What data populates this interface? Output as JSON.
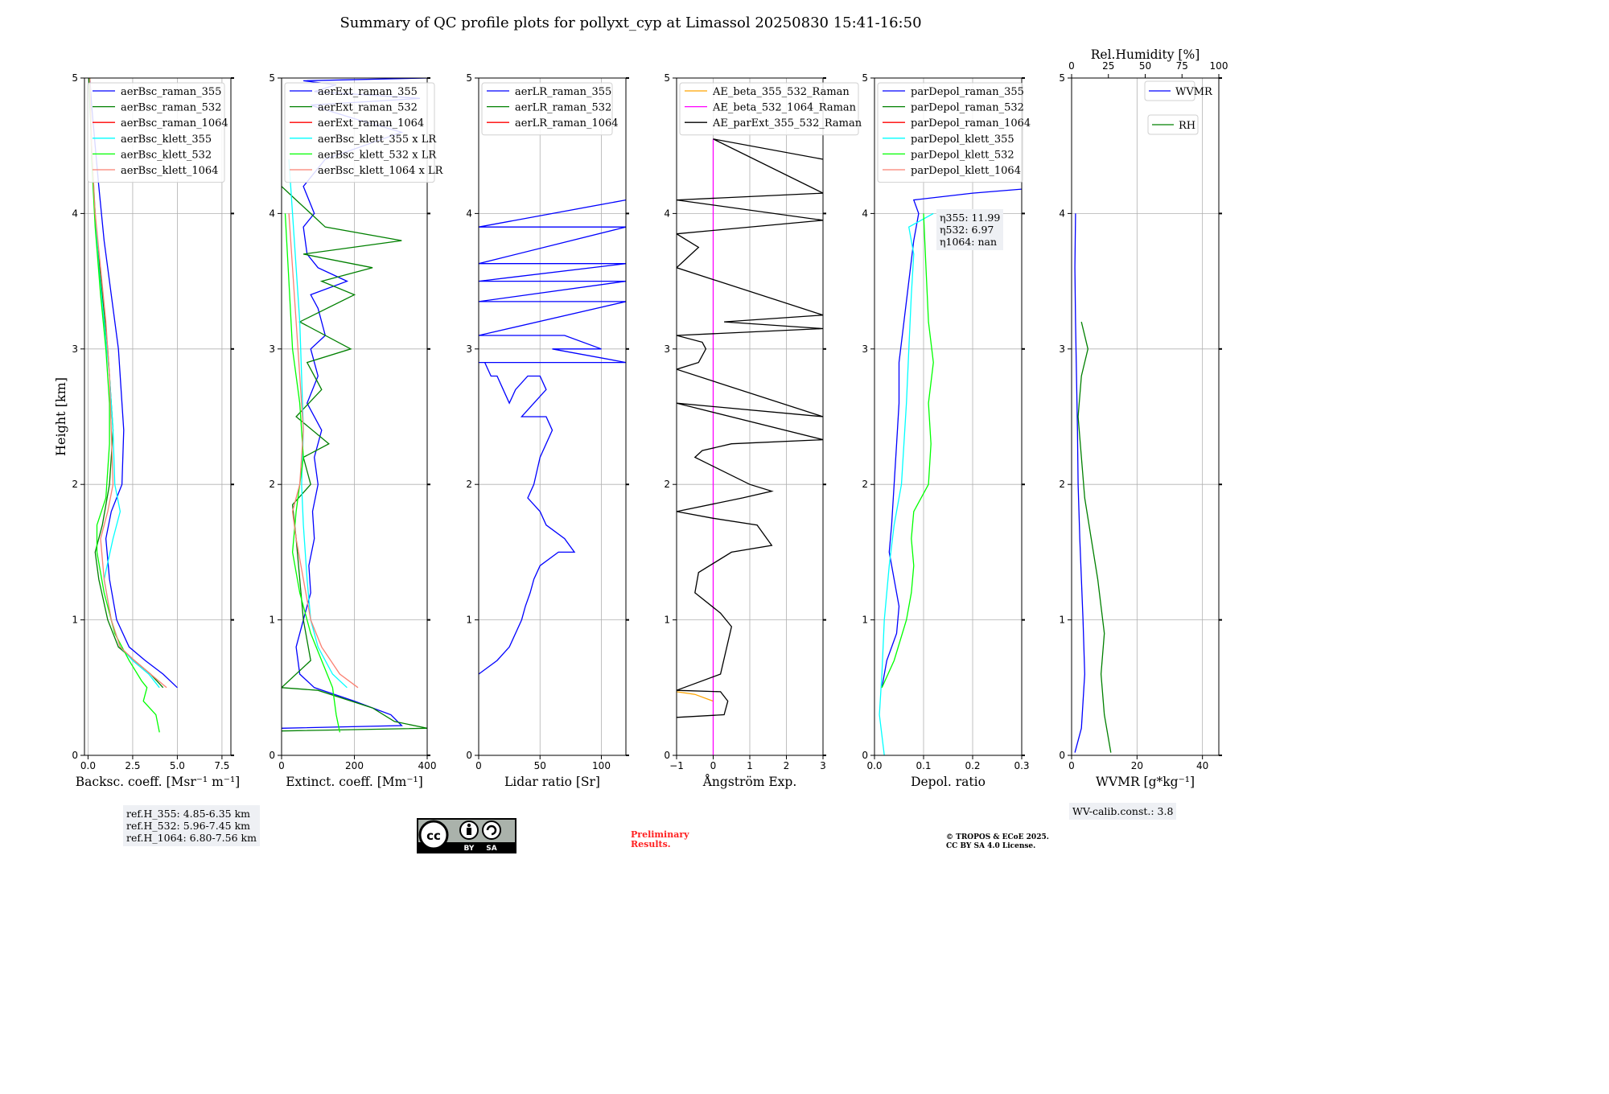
{
  "title": "Summary of QC profile plots for pollyxt_cyp at Limassol 20250830 15:41-16:50",
  "ylabel": "Height [km]",
  "ref_heights": [
    "ref.H_355: 4.85-6.35 km",
    "ref.H_532: 5.96-7.45 km",
    "ref.H_1064: 6.80-7.56 km"
  ],
  "eta": [
    "η355: 11.99",
    "η532: 6.97",
    "η1064: nan"
  ],
  "wv_calib": "WV-calib.const.: 3.8",
  "preliminary": [
    "Preliminary",
    "Results."
  ],
  "copyright": [
    "© TROPOS & ECoE 2025.",
    "CC BY SA 4.0 License."
  ],
  "license_badge": [
    "BY",
    "SA"
  ],
  "colors": {
    "blue": "#0000ff",
    "green": "#008000",
    "red": "#ff0000",
    "cyan": "#00ffff",
    "lime": "#00ff00",
    "salmon": "#fa8072",
    "orange": "#ffa500",
    "magenta": "#ff00ff",
    "black": "#000000"
  },
  "chart_data": [
    {
      "type": "line",
      "xlabel": "Backsc. coeff. [Msr⁻¹ m⁻¹]",
      "xlim": [
        -0.2,
        8
      ],
      "xticks": [
        0.0,
        2.5,
        5.0,
        7.5
      ],
      "xticklabels": [
        "0.0",
        "2.5",
        "5.0",
        "7.5"
      ],
      "ylim": [
        0,
        5
      ],
      "yticks": [
        0,
        1,
        2,
        3,
        4,
        5
      ],
      "grid": true,
      "legend": "top",
      "series": [
        {
          "name": "aerBsc_raman_355",
          "color": "blue",
          "x": [
            5.0,
            4.2,
            3.2,
            2.3,
            1.6,
            1.2,
            1.0,
            1.3,
            1.9,
            2.0,
            1.9,
            1.7,
            1.3,
            0.9,
            0.6,
            0.4,
            0.2,
            0.1
          ],
          "y": [
            0.5,
            0.6,
            0.7,
            0.8,
            1.0,
            1.3,
            1.6,
            1.8,
            2.0,
            2.4,
            2.6,
            3.0,
            3.4,
            3.8,
            4.2,
            4.5,
            4.8,
            5.0
          ]
        },
        {
          "name": "aerBsc_raman_532",
          "color": "green",
          "x": [
            4.2,
            3.5,
            2.6,
            1.7,
            1.1,
            0.6,
            0.4,
            0.8,
            1.2,
            1.4,
            1.3,
            1.1,
            0.8,
            0.5,
            0.3,
            0.2,
            0.1,
            0.05
          ],
          "y": [
            0.5,
            0.6,
            0.7,
            0.8,
            1.0,
            1.3,
            1.5,
            1.7,
            2.0,
            2.4,
            2.6,
            3.0,
            3.4,
            3.8,
            4.2,
            4.5,
            4.8,
            5.0
          ]
        },
        {
          "name": "aerBsc_raman_1064",
          "color": "red",
          "x": [],
          "y": []
        },
        {
          "name": "aerBsc_klett_355",
          "color": "cyan",
          "x": [
            4.0,
            3.4,
            2.5,
            1.8,
            1.3,
            0.9,
            1.4,
            1.8,
            1.5,
            1.4,
            1.2,
            0.9,
            0.6,
            0.4,
            0.2,
            0.1
          ],
          "y": [
            0.5,
            0.6,
            0.7,
            0.8,
            1.0,
            1.3,
            1.6,
            1.8,
            2.0,
            2.4,
            2.8,
            3.2,
            3.6,
            4.0,
            4.5,
            5.0
          ]
        },
        {
          "name": "aerBsc_klett_532",
          "color": "lime",
          "x": [
            4.0,
            3.8,
            3.1,
            3.3,
            3.0,
            2.3,
            1.5,
            0.9,
            0.5,
            0.5,
            1.0,
            1.2,
            1.2,
            1.0,
            0.7,
            0.4,
            0.2,
            0.1
          ],
          "y": [
            0.17,
            0.3,
            0.4,
            0.5,
            0.55,
            0.7,
            0.9,
            1.2,
            1.5,
            1.7,
            1.9,
            2.3,
            2.6,
            3.0,
            3.4,
            3.9,
            4.4,
            5.0
          ]
        },
        {
          "name": "aerBsc_klett_1064",
          "color": "salmon",
          "x": [
            4.4,
            3.5,
            2.6,
            1.8,
            1.3,
            0.9,
            0.7,
            1.1,
            1.4,
            1.3,
            1.2,
            1.0,
            0.7,
            0.4,
            0.2,
            0.1
          ],
          "y": [
            0.5,
            0.6,
            0.7,
            0.8,
            1.0,
            1.3,
            1.6,
            1.8,
            2.0,
            2.4,
            2.8,
            3.2,
            3.6,
            4.0,
            4.5,
            5.0
          ]
        }
      ]
    },
    {
      "type": "line",
      "xlabel": "Extinct. coeff. [Mm⁻¹]",
      "xlim": [
        0,
        400
      ],
      "xticks": [
        0,
        200,
        400
      ],
      "xticklabels": [
        "0",
        "200",
        "400"
      ],
      "ylim": [
        0,
        5
      ],
      "yticks": [
        0,
        1,
        2,
        3,
        4,
        5
      ],
      "grid": true,
      "legend": "top",
      "series": [
        {
          "name": "aerExt_raman_355",
          "color": "blue",
          "x": [
            0,
            330,
            300,
            200,
            90,
            50,
            40,
            60,
            80,
            75,
            90,
            85,
            100,
            90,
            110,
            70,
            100,
            80,
            120,
            100,
            80,
            180,
            100,
            70,
            60,
            90,
            60,
            120,
            330,
            200,
            80,
            380,
            90,
            150,
            60,
            400
          ],
          "y": [
            0.2,
            0.22,
            0.3,
            0.4,
            0.5,
            0.6,
            0.8,
            1.0,
            1.2,
            1.4,
            1.6,
            1.8,
            2.0,
            2.2,
            2.4,
            2.6,
            2.8,
            3.0,
            3.1,
            3.3,
            3.4,
            3.5,
            3.6,
            3.7,
            3.9,
            4.0,
            4.2,
            4.4,
            4.6,
            4.7,
            4.8,
            4.85,
            4.9,
            4.95,
            4.98,
            5.0
          ]
        },
        {
          "name": "aerExt_raman_532",
          "color": "green",
          "x": [
            0,
            400,
            310,
            250,
            100,
            0,
            80,
            60,
            50,
            40,
            30,
            80,
            60,
            130,
            40,
            110,
            70,
            190,
            50,
            200,
            110,
            250,
            60,
            330,
            120,
            40,
            0
          ],
          "y": [
            0.18,
            0.2,
            0.25,
            0.35,
            0.48,
            0.5,
            0.7,
            1.0,
            1.3,
            1.6,
            1.85,
            2.0,
            2.2,
            2.3,
            2.5,
            2.7,
            2.9,
            3.0,
            3.2,
            3.4,
            3.5,
            3.6,
            3.7,
            3.8,
            3.9,
            4.1,
            4.2
          ]
        },
        {
          "name": "aerExt_raman_1064",
          "color": "red",
          "x": [],
          "y": []
        },
        {
          "name": "aerBsc_klett_355 x LR",
          "color": "cyan",
          "x": [
            180,
            140,
            100,
            80,
            70,
            60,
            55,
            60,
            55,
            50,
            40,
            30,
            20
          ],
          "y": [
            0.5,
            0.6,
            0.8,
            1.0,
            1.3,
            1.7,
            2.0,
            2.4,
            2.8,
            3.2,
            3.6,
            4.0,
            4.4
          ]
        },
        {
          "name": "aerBsc_klett_532 x LR",
          "color": "lime",
          "x": [
            160,
            150,
            140,
            110,
            80,
            50,
            30,
            40,
            60,
            50,
            30,
            20,
            10
          ],
          "y": [
            0.17,
            0.3,
            0.5,
            0.7,
            0.9,
            1.2,
            1.5,
            1.8,
            2.2,
            2.6,
            3.0,
            3.5,
            4.0
          ]
        },
        {
          "name": "aerBsc_klett_1064 x LR",
          "color": "salmon",
          "x": [
            210,
            160,
            110,
            80,
            60,
            40,
            30,
            50,
            60,
            50,
            40,
            30,
            20
          ],
          "y": [
            0.5,
            0.6,
            0.8,
            1.0,
            1.3,
            1.6,
            1.8,
            2.0,
            2.4,
            2.8,
            3.2,
            3.6,
            4.0
          ]
        }
      ]
    },
    {
      "type": "line",
      "xlabel": "Lidar ratio [Sr]",
      "xlim": [
        0,
        120
      ],
      "xticks": [
        0,
        50,
        100
      ],
      "xticklabels": [
        "0",
        "50",
        "100"
      ],
      "ylim": [
        0,
        5
      ],
      "yticks": [
        0,
        1,
        2,
        3,
        4,
        5
      ],
      "grid": true,
      "legend": "top",
      "series": [
        {
          "name": "aerLR_raman_355",
          "color": "blue",
          "x": [
            0,
            15,
            25,
            30,
            35,
            38,
            42,
            45,
            50,
            65,
            78,
            70,
            55,
            50,
            40,
            45,
            50,
            60,
            55,
            35,
            45,
            55,
            50,
            40,
            30,
            25,
            20,
            15,
            10,
            5,
            0,
            120,
            60,
            100,
            70,
            0,
            120,
            0,
            120,
            0,
            120,
            0,
            120,
            0,
            120
          ],
          "y": [
            0.6,
            0.7,
            0.8,
            0.9,
            1.0,
            1.1,
            1.2,
            1.3,
            1.4,
            1.5,
            1.5,
            1.6,
            1.7,
            1.8,
            1.9,
            2.0,
            2.2,
            2.4,
            2.5,
            2.5,
            2.6,
            2.7,
            2.8,
            2.8,
            2.7,
            2.6,
            2.7,
            2.8,
            2.8,
            2.9,
            2.9,
            2.9,
            3.0,
            3.0,
            3.1,
            3.1,
            3.35,
            3.35,
            3.5,
            3.5,
            3.63,
            3.63,
            3.9,
            3.9,
            4.1
          ]
        },
        {
          "name": "aerLR_raman_532",
          "color": "green",
          "x": [],
          "y": []
        },
        {
          "name": "aerLR_raman_1064",
          "color": "red",
          "x": [],
          "y": []
        }
      ]
    },
    {
      "type": "line",
      "xlabel": "Ångström Exp.",
      "xlim": [
        -1,
        3
      ],
      "xticks": [
        -1,
        0,
        1,
        2,
        3
      ],
      "xticklabels": [
        "−1",
        "0",
        "1",
        "2",
        "3"
      ],
      "ylim": [
        0,
        5
      ],
      "yticks": [
        0,
        1,
        2,
        3,
        4,
        5
      ],
      "grid": true,
      "legend": "top",
      "series": [
        {
          "name": "AE_beta_355_532_Raman",
          "color": "orange",
          "x": [
            -1,
            -0.5,
            0
          ],
          "y": [
            0.47,
            0.45,
            0.4
          ]
        },
        {
          "name": "AE_beta_532_1064_Raman",
          "color": "magenta",
          "x": [
            0,
            0
          ],
          "y": [
            0,
            4.55
          ]
        },
        {
          "name": "AE_parExt_355_532_Raman",
          "color": "black",
          "x": [
            -1,
            0.3,
            0.4,
            0.2,
            -1,
            -0.8,
            0.2,
            0.5,
            0.2,
            -0.5,
            -0.4,
            0.5,
            1.6,
            1.2,
            0,
            -1,
            0.8,
            1.6,
            1.0,
            -0.5,
            -0.3,
            0.5,
            3,
            -1,
            3,
            -1,
            -0.4,
            -0.2,
            -0.3,
            -1,
            3,
            0.3,
            3,
            -1,
            -0.6,
            -0.4,
            -0.7,
            -1,
            3,
            -1,
            3,
            0,
            3
          ],
          "y": [
            0.28,
            0.3,
            0.4,
            0.47,
            0.48,
            0.5,
            0.6,
            0.95,
            1.05,
            1.2,
            1.35,
            1.5,
            1.55,
            1.7,
            1.75,
            1.8,
            1.9,
            1.95,
            2.0,
            2.2,
            2.25,
            2.3,
            2.33,
            2.6,
            2.5,
            2.85,
            2.9,
            3.0,
            3.05,
            3.1,
            3.15,
            3.2,
            3.25,
            3.6,
            3.7,
            3.75,
            3.8,
            3.85,
            3.95,
            4.1,
            4.15,
            4.55,
            4.4
          ]
        }
      ]
    },
    {
      "type": "line",
      "xlabel": "Depol. ratio",
      "xlim": [
        0,
        0.3
      ],
      "xticks": [
        0.0,
        0.1,
        0.2,
        0.3
      ],
      "xticklabels": [
        "0.0",
        "0.1",
        "0.2",
        "0.3"
      ],
      "ylim": [
        0,
        5
      ],
      "yticks": [
        0,
        1,
        2,
        3,
        4,
        5
      ],
      "grid": true,
      "legend": "top",
      "series": [
        {
          "name": "parDepol_raman_355",
          "color": "blue",
          "x": [
            0.015,
            0.025,
            0.045,
            0.05,
            0.04,
            0.03,
            0.035,
            0.04,
            0.045,
            0.05,
            0.05,
            0.06,
            0.07,
            0.08,
            0.09,
            0.08,
            0.2,
            0.3
          ],
          "y": [
            0.5,
            0.7,
            0.9,
            1.1,
            1.3,
            1.5,
            1.7,
            2.0,
            2.3,
            2.6,
            2.9,
            3.2,
            3.5,
            3.8,
            4.0,
            4.1,
            4.15,
            4.18
          ]
        },
        {
          "name": "parDepol_raman_532",
          "color": "green",
          "x": [],
          "y": []
        },
        {
          "name": "parDepol_raman_1064",
          "color": "red",
          "x": [],
          "y": []
        },
        {
          "name": "parDepol_klett_355",
          "color": "cyan",
          "x": [
            0.02,
            0.01,
            0.015,
            0.02,
            0.03,
            0.04,
            0.055,
            0.06,
            0.065,
            0.07,
            0.075,
            0.08,
            0.07,
            0.12
          ],
          "y": [
            0.0,
            0.3,
            0.6,
            1.0,
            1.4,
            1.7,
            2.0,
            2.3,
            2.6,
            3.0,
            3.4,
            3.7,
            3.9,
            4.0
          ]
        },
        {
          "name": "parDepol_klett_532",
          "color": "lime",
          "x": [
            0.015,
            0.04,
            0.065,
            0.075,
            0.08,
            0.075,
            0.08,
            0.11,
            0.115,
            0.11,
            0.12,
            0.11,
            0.105,
            0.1
          ],
          "y": [
            0.5,
            0.7,
            1.0,
            1.2,
            1.4,
            1.6,
            1.8,
            2.0,
            2.3,
            2.6,
            2.9,
            3.2,
            3.6,
            4.0
          ]
        },
        {
          "name": "parDepol_klett_1064",
          "color": "salmon",
          "x": [],
          "y": []
        }
      ]
    },
    {
      "type": "line",
      "xlabel": "WVMR [g*kg⁻¹]",
      "xlim": [
        0,
        45
      ],
      "xticks": [
        0,
        20,
        40
      ],
      "xticklabels": [
        "0",
        "20",
        "40"
      ],
      "x2label": "Rel.Humidity [%]",
      "x2lim": [
        0,
        100
      ],
      "x2ticks": [
        0,
        25,
        50,
        75,
        100
      ],
      "x2ticklabels": [
        "0",
        "25",
        "50",
        "75",
        "100"
      ],
      "ylim": [
        0,
        5
      ],
      "yticks": [
        0,
        1,
        2,
        3,
        4,
        5
      ],
      "grid": true,
      "legend": "top-right",
      "series": [
        {
          "name": "WVMR",
          "color": "blue",
          "x": [
            1,
            3,
            4,
            3.5,
            3,
            2.5,
            2,
            1.8,
            1.5,
            1.2,
            1,
            1.2
          ],
          "y": [
            0.02,
            0.2,
            0.6,
            1.0,
            1.3,
            1.6,
            2.0,
            2.4,
            2.8,
            3.2,
            3.6,
            4.0
          ]
        },
        {
          "name": "RH",
          "color": "green",
          "x": [
            12,
            10,
            9,
            10,
            9,
            8,
            6,
            4,
            3,
            2,
            3,
            5,
            3
          ],
          "y": [
            0.02,
            0.3,
            0.6,
            0.9,
            1.1,
            1.3,
            1.6,
            1.9,
            2.2,
            2.5,
            2.8,
            3.0,
            3.2
          ]
        }
      ]
    }
  ]
}
